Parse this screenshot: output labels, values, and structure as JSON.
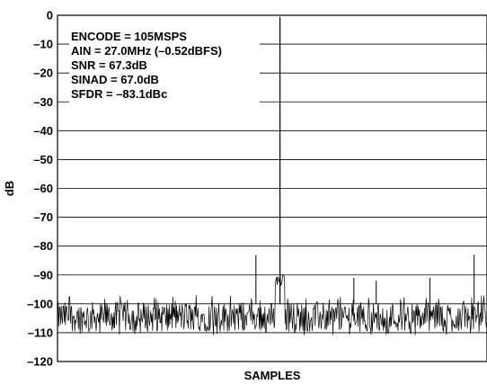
{
  "chart_data": {
    "type": "line",
    "title": "",
    "xlabel": "SAMPLES",
    "ylabel": "dB",
    "ylim": [
      -120,
      0
    ],
    "yticks": [
      0,
      -10,
      -20,
      -30,
      -40,
      -50,
      -60,
      -70,
      -80,
      -90,
      -100,
      -110,
      -120
    ],
    "ytick_labels": [
      "0",
      "–10",
      "–20",
      "–30",
      "–40",
      "–50",
      "–60",
      "–70",
      "–80",
      "–90",
      "–100",
      "–110",
      "–120"
    ],
    "grid": true,
    "annotations": [
      "ENCODE = 105MSPS",
      "AIN = 27.0MHz (–0.52dBFS)",
      "SNR = 67.3dB",
      "SINAD = 67.0dB",
      "SFDR = –83.1dBc"
    ],
    "series": [
      {
        "color": "#000000",
        "noise_floor_range": [
          -111,
          -97
        ],
        "fundamental": {
          "x": 0.518,
          "y": -0.5
        },
        "spurs": [
          {
            "x": 0.462,
            "y": -83.1
          },
          {
            "x": 0.69,
            "y": -91
          },
          {
            "x": 0.742,
            "y": -92
          },
          {
            "x": 0.867,
            "y": -91
          },
          {
            "x": 0.97,
            "y": -83
          }
        ]
      }
    ],
    "xlim": [
      0,
      1
    ]
  }
}
